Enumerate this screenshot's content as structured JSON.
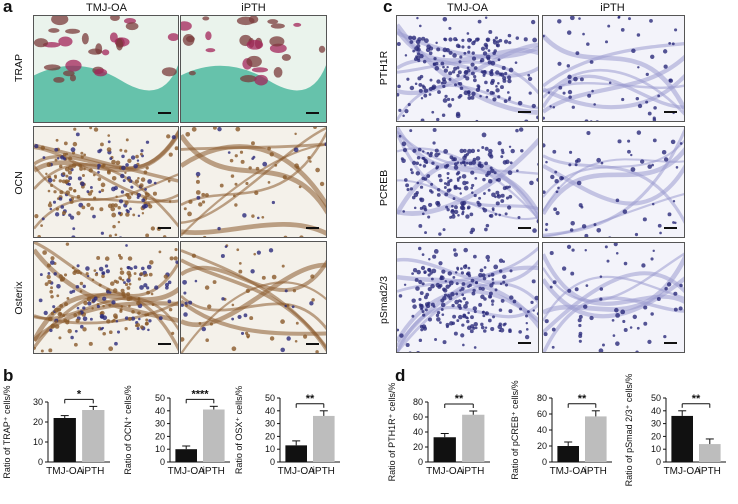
{
  "panels": {
    "a": {
      "letter": "a",
      "columns": [
        "TMJ-OA",
        "iPTH"
      ],
      "rows": [
        "TRAP",
        "OCN",
        "Osterix"
      ]
    },
    "c": {
      "letter": "c",
      "columns": [
        "TMJ-OA",
        "iPTH"
      ],
      "rows": [
        "PTH1R",
        "PCREB",
        "pSmad2/3"
      ]
    },
    "b": {
      "letter": "b"
    },
    "d": {
      "letter": "d"
    }
  },
  "colors": {
    "bar_tmj": "#111111",
    "bar_ipth": "#bdbdbd",
    "trap_bg": "#4fb8a0",
    "ihc_brown": "#8a5a2b",
    "nuclei_blue": "#2b2b7a"
  },
  "chart_data": [
    {
      "type": "bar",
      "ylabel": "Ratio of TRAP⁺ cells/%",
      "categories": [
        "TMJ-OA",
        "iPTH"
      ],
      "values": [
        22,
        26
      ],
      "errors": [
        1.2,
        1.8
      ],
      "yticks": [
        0,
        10,
        20,
        30
      ],
      "ylim": [
        0,
        30
      ],
      "significance": "*"
    },
    {
      "type": "bar",
      "ylabel": "Ratio of OCN⁺ cells/%",
      "categories": [
        "TMJ-OA",
        "iPTH"
      ],
      "values": [
        10,
        41
      ],
      "errors": [
        2.5,
        2.5
      ],
      "yticks": [
        0,
        10,
        20,
        30,
        40,
        50
      ],
      "ylim": [
        0,
        50
      ],
      "significance": "****"
    },
    {
      "type": "bar",
      "ylabel": "Ratio of OSX⁺ cells/%",
      "categories": [
        "TMJ-OA",
        "iPTH"
      ],
      "values": [
        13,
        36
      ],
      "errors": [
        3.5,
        4
      ],
      "yticks": [
        0,
        10,
        20,
        30,
        40,
        50
      ],
      "ylim": [
        0,
        50
      ],
      "significance": "**"
    },
    {
      "type": "bar",
      "ylabel": "Ratio of PTH1R⁺ cells/%",
      "categories": [
        "TMJ-OA",
        "iPTH"
      ],
      "values": [
        33,
        63
      ],
      "errors": [
        5,
        5
      ],
      "yticks": [
        0,
        20,
        40,
        60,
        80
      ],
      "ylim": [
        0,
        80
      ],
      "significance": "**"
    },
    {
      "type": "bar",
      "ylabel": "Ratio of pCREB⁺ cells/%",
      "categories": [
        "TMJ-OA",
        "iPTH"
      ],
      "values": [
        20,
        57
      ],
      "errors": [
        5,
        7
      ],
      "yticks": [
        0,
        20,
        40,
        60,
        80
      ],
      "ylim": [
        0,
        80
      ],
      "significance": "**"
    },
    {
      "type": "bar",
      "ylabel": "Ratio of pSmad 2/3⁺ cells/%",
      "categories": [
        "TMJ-OA",
        "iPTH"
      ],
      "values": [
        36,
        14
      ],
      "errors": [
        4,
        4
      ],
      "yticks": [
        0,
        10,
        20,
        30,
        40,
        50
      ],
      "ylim": [
        0,
        50
      ],
      "significance": "**"
    }
  ]
}
